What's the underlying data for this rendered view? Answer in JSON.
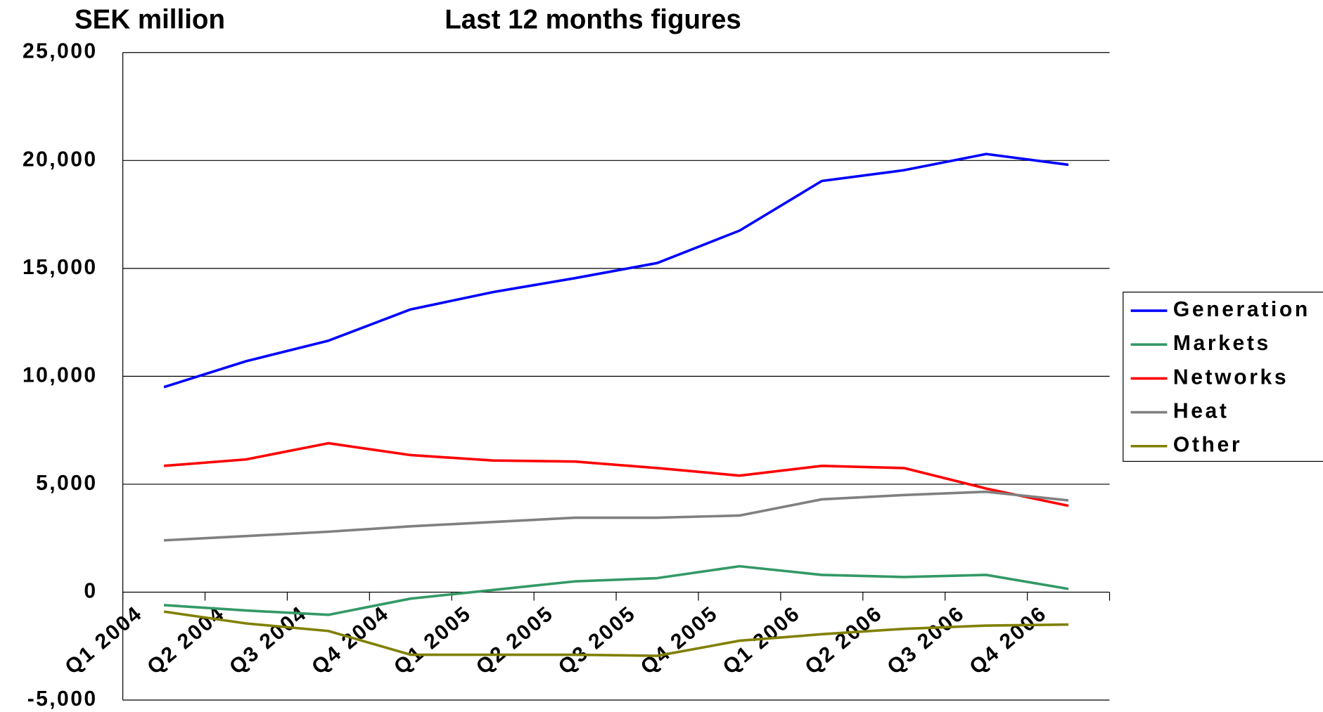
{
  "chart_data": {
    "type": "line",
    "title": "Last 12 months figures",
    "y_label": "SEK million",
    "categories": [
      "Q1 2004",
      "Q2 2004",
      "Q3 2004",
      "Q4 2004",
      "Q1 2005",
      "Q2 2005",
      "Q3 2005",
      "Q4 2005",
      "Q1 2006",
      "Q2 2006",
      "Q3 2006",
      "Q4 2006"
    ],
    "series": [
      {
        "name": "Generation",
        "color": "#0000ff",
        "values": [
          9500,
          10700,
          11650,
          13100,
          13900,
          14550,
          15250,
          16750,
          19050,
          19550,
          20300,
          19800
        ]
      },
      {
        "name": "Markets",
        "color": "#339966",
        "values": [
          -600,
          -850,
          -1050,
          -300,
          100,
          500,
          650,
          1200,
          800,
          700,
          800,
          150
        ]
      },
      {
        "name": "Networks",
        "color": "#ff0000",
        "values": [
          5850,
          6150,
          6900,
          6350,
          6100,
          6050,
          5750,
          5400,
          5850,
          5750,
          4800,
          4000
        ]
      },
      {
        "name": "Heat",
        "color": "#808080",
        "values": [
          2400,
          2600,
          2800,
          3050,
          3250,
          3450,
          3450,
          3550,
          4300,
          4500,
          4650,
          4250
        ]
      },
      {
        "name": "Other",
        "color": "#808000",
        "values": [
          -900,
          -1450,
          -1800,
          -2900,
          -2900,
          -2900,
          -2950,
          -2250,
          -1950,
          -1700,
          -1550,
          -1500
        ]
      }
    ],
    "ylim": [
      -5000,
      25000
    ],
    "yticks": [
      {
        "value": -5000,
        "label": "-5,000"
      },
      0,
      {
        "value": 5000,
        "label": "5,000"
      },
      {
        "value": 10000,
        "label": "10,000"
      },
      {
        "value": 15000,
        "label": "15,000"
      },
      {
        "value": 20000,
        "label": "20,000"
      },
      {
        "value": 25000,
        "label": "25,000"
      }
    ],
    "grid": true,
    "legend": "right"
  }
}
